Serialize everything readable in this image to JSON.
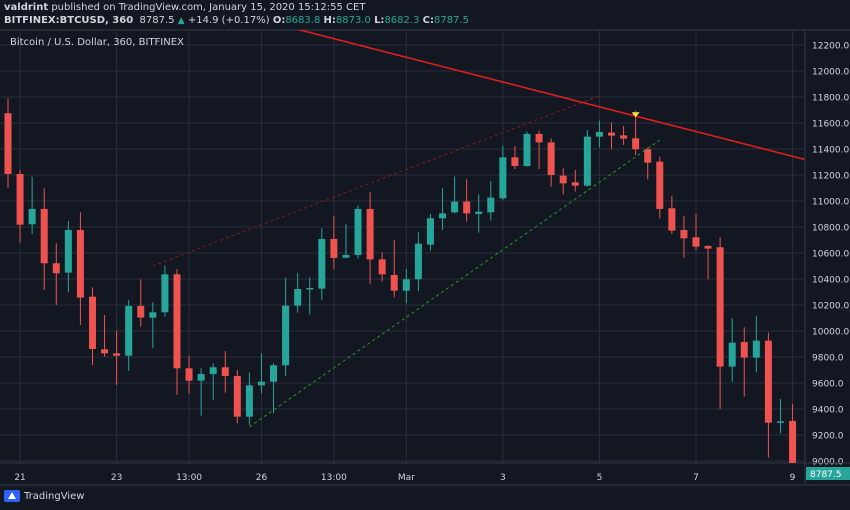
{
  "header": {
    "author": "valdrint",
    "published": "published on TradingView.com, January 15, 2020 15:12:55 CET",
    "symbol": "BITFINEX:BTCUSD, 360",
    "last": "8787.5",
    "change": "+14.9 (+0.17%)",
    "o_label": "O:",
    "o": "8683.8",
    "h_label": "H:",
    "h": "8873.0",
    "l_label": "L:",
    "l": "8682.3",
    "c_label": "C:",
    "c": "8787.5"
  },
  "chart_title": "Bitcoin / U.S. Dollar, 360, BITFINEX",
  "footer": {
    "brand": "TradingView"
  },
  "colors": {
    "background": "#131722",
    "grid": "#2a2e39",
    "up": "#26a69a",
    "down": "#ef5350",
    "resistance": "#e01e1e",
    "channel_top": "#8b1a1a",
    "channel_bottom": "#1e9e1e",
    "marker": "#ffeb3b"
  },
  "chart_data": {
    "type": "candlestick",
    "title": "Bitcoin / U.S. Dollar, 360, BITFINEX",
    "ylim": [
      8985,
      12320
    ],
    "yticks": [
      12200,
      12000,
      11800,
      11600,
      11400,
      11200,
      11000,
      10800,
      10600,
      10400,
      10200,
      10000,
      9800,
      9600,
      9400,
      9200,
      9000
    ],
    "xticks": [
      {
        "label": "21",
        "index": 1
      },
      {
        "label": "23",
        "index": 9
      },
      {
        "label": "13:00",
        "index": 15
      },
      {
        "label": "26",
        "index": 21
      },
      {
        "label": "13:00",
        "index": 27
      },
      {
        "label": "Mar",
        "index": 33
      },
      {
        "label": "3",
        "index": 41
      },
      {
        "label": "5",
        "index": 49
      },
      {
        "label": "7",
        "index": 57
      },
      {
        "label": "9",
        "index": 65
      }
    ],
    "grid": true,
    "last_price_label": "8787.5",
    "candles_ohlc": [
      [
        11675,
        11790,
        11098,
        11208
      ],
      [
        11208,
        11239,
        10680,
        10818
      ],
      [
        10821,
        11187,
        10746,
        10939
      ],
      [
        10939,
        11098,
        10316,
        10521
      ],
      [
        10521,
        10675,
        10200,
        10444
      ],
      [
        10449,
        10846,
        10298,
        10777
      ],
      [
        10777,
        10913,
        10046,
        10257
      ],
      [
        10264,
        10336,
        9739,
        9862
      ],
      [
        9859,
        10123,
        9803,
        9828
      ],
      [
        9828,
        10003,
        9585,
        9810
      ],
      [
        9810,
        10239,
        9693,
        10193
      ],
      [
        10193,
        10398,
        10034,
        10103
      ],
      [
        10103,
        10221,
        9867,
        10144
      ],
      [
        10144,
        10503,
        10110,
        10436
      ],
      [
        10436,
        10477,
        9508,
        9713
      ],
      [
        9713,
        9808,
        9521,
        9618
      ],
      [
        9618,
        9713,
        9349,
        9669
      ],
      [
        9669,
        9752,
        9469,
        9721
      ],
      [
        9721,
        9846,
        9526,
        9654
      ],
      [
        9654,
        9700,
        9290,
        9341
      ],
      [
        9341,
        9680,
        9277,
        9582
      ],
      [
        9582,
        9828,
        9521,
        9610
      ],
      [
        9610,
        9752,
        9367,
        9736
      ],
      [
        9736,
        10410,
        9654,
        10195
      ],
      [
        10195,
        10444,
        10141,
        10323
      ],
      [
        10321,
        10413,
        10128,
        10331
      ],
      [
        10326,
        10790,
        10239,
        10708
      ],
      [
        10708,
        10885,
        10475,
        10562
      ],
      [
        10564,
        10821,
        10559,
        10585
      ],
      [
        10585,
        10964,
        10559,
        10939
      ],
      [
        10939,
        11067,
        10359,
        10551
      ],
      [
        10551,
        10605,
        10380,
        10436
      ],
      [
        10431,
        10700,
        10259,
        10310
      ],
      [
        10310,
        10477,
        10213,
        10398
      ],
      [
        10398,
        10759,
        10308,
        10672
      ],
      [
        10664,
        10900,
        10618,
        10867
      ],
      [
        10867,
        11098,
        10777,
        10905
      ],
      [
        10913,
        11187,
        10905,
        10995
      ],
      [
        10995,
        11167,
        10841,
        10905
      ],
      [
        10900,
        11051,
        10757,
        10918
      ],
      [
        10913,
        11154,
        10849,
        11026
      ],
      [
        11021,
        11423,
        11008,
        11336
      ],
      [
        11336,
        11423,
        11246,
        11269
      ],
      [
        11269,
        11534,
        11264,
        11516
      ],
      [
        11516,
        11540,
        11246,
        11451
      ],
      [
        11451,
        11482,
        11110,
        11200
      ],
      [
        11195,
        11251,
        11051,
        11136
      ],
      [
        11144,
        11239,
        11072,
        11118
      ],
      [
        11118,
        11546,
        11110,
        11495
      ],
      [
        11495,
        11618,
        11413,
        11531
      ],
      [
        11526,
        11605,
        11398,
        11503
      ],
      [
        11505,
        11577,
        11431,
        11480
      ],
      [
        11482,
        11695,
        11354,
        11398
      ],
      [
        11398,
        11413,
        11167,
        11295
      ],
      [
        11303,
        11341,
        10867,
        10939
      ],
      [
        10944,
        11039,
        10746,
        10772
      ],
      [
        10777,
        10885,
        10564,
        10713
      ],
      [
        10721,
        10900,
        10623,
        10649
      ],
      [
        10654,
        10660,
        10398,
        10634
      ],
      [
        10644,
        10721,
        9400,
        9726
      ],
      [
        9726,
        10098,
        9610,
        9910
      ],
      [
        9915,
        10028,
        9495,
        9795
      ],
      [
        9795,
        10116,
        9682,
        9926
      ],
      [
        9926,
        9987,
        9026,
        9295
      ],
      [
        9295,
        9477,
        9213,
        9305
      ],
      [
        9308,
        9439,
        8700,
        8772.6
      ],
      [
        8683.8,
        8873.0,
        8682.3,
        8787.5
      ]
    ],
    "drawings": [
      {
        "kind": "trendline",
        "style": "solid",
        "color": "resistance",
        "from": {
          "index": 24,
          "price": 12320
        },
        "to": {
          "index": 66,
          "price": 11320
        }
      },
      {
        "kind": "trendline",
        "style": "dashed",
        "color": "channel_top",
        "from": {
          "index": 12,
          "price": 10500
        },
        "to": {
          "index": 49,
          "price": 11808
        }
      },
      {
        "kind": "trendline",
        "style": "dashed",
        "color": "channel_bottom",
        "from": {
          "index": 20,
          "price": 9262
        },
        "to": {
          "index": 54,
          "price": 11469
        }
      },
      {
        "kind": "marker",
        "shape": "triangle-down",
        "color": "marker",
        "index": 52,
        "price": 11660
      }
    ]
  }
}
